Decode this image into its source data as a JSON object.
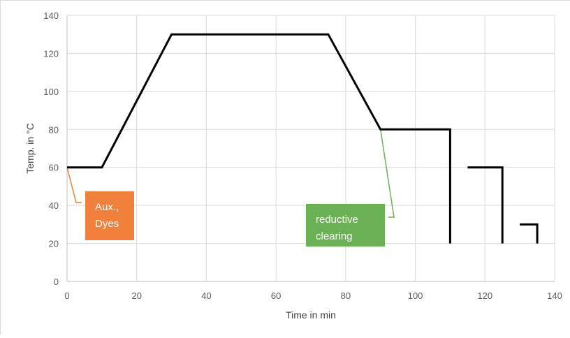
{
  "chart_data": {
    "type": "line",
    "title": "",
    "xlabel": "Time in min",
    "ylabel": "Temp. in °C",
    "xlim": [
      0,
      140
    ],
    "ylim": [
      0,
      140
    ],
    "xticks": [
      0,
      20,
      40,
      60,
      80,
      100,
      120,
      140
    ],
    "yticks": [
      0,
      20,
      40,
      60,
      80,
      100,
      120,
      140
    ],
    "grid": true,
    "legend": "none",
    "line_color": "#000000",
    "grid_color": "#d9d9d9",
    "segments": [
      {
        "x": [
          0,
          10,
          30,
          75,
          90,
          110,
          110
        ],
        "y": [
          60,
          60,
          130,
          130,
          80,
          80,
          20
        ]
      },
      {
        "x": [
          115,
          125,
          125
        ],
        "y": [
          60,
          60,
          20
        ]
      },
      {
        "x": [
          130,
          135,
          135
        ],
        "y": [
          30,
          30,
          20
        ]
      }
    ],
    "annotations": [
      {
        "text_lines": [
          "Aux.,",
          "Dyes"
        ],
        "color": "#f0803c",
        "point": [
          0,
          60
        ]
      },
      {
        "text_lines": [
          "reductive",
          "clearing"
        ],
        "color": "#6ab155",
        "point": [
          90,
          80
        ]
      }
    ]
  }
}
